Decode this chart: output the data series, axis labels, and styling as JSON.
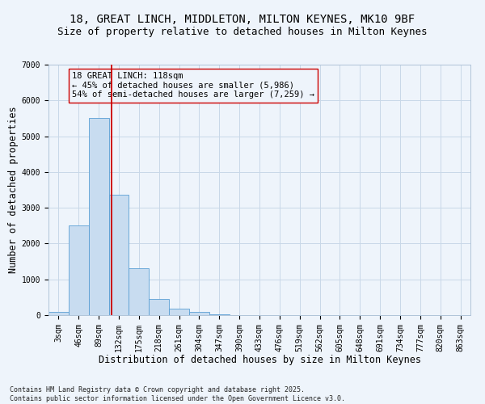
{
  "title_line1": "18, GREAT LINCH, MIDDLETON, MILTON KEYNES, MK10 9BF",
  "title_line2": "Size of property relative to detached houses in Milton Keynes",
  "xlabel": "Distribution of detached houses by size in Milton Keynes",
  "ylabel": "Number of detached properties",
  "categories": [
    "3sqm",
    "46sqm",
    "89sqm",
    "132sqm",
    "175sqm",
    "218sqm",
    "261sqm",
    "304sqm",
    "347sqm",
    "390sqm",
    "433sqm",
    "476sqm",
    "519sqm",
    "562sqm",
    "605sqm",
    "648sqm",
    "691sqm",
    "734sqm",
    "777sqm",
    "820sqm",
    "863sqm"
  ],
  "values": [
    100,
    2500,
    5500,
    3370,
    1310,
    460,
    190,
    100,
    30,
    0,
    0,
    0,
    0,
    0,
    0,
    0,
    0,
    0,
    0,
    0,
    0
  ],
  "bar_color": "#c8dcf0",
  "bar_edge_color": "#5a9fd4",
  "grid_color": "#c8d8e8",
  "bg_color": "#eef4fb",
  "vline_color": "#cc0000",
  "vline_pos": 2.62,
  "annotation_text": "18 GREAT LINCH: 118sqm\n← 45% of detached houses are smaller (5,986)\n54% of semi-detached houses are larger (7,259) →",
  "ylim": [
    0,
    7000
  ],
  "yticks": [
    0,
    1000,
    2000,
    3000,
    4000,
    5000,
    6000,
    7000
  ],
  "footnote": "Contains HM Land Registry data © Crown copyright and database right 2025.\nContains public sector information licensed under the Open Government Licence v3.0.",
  "title_fontsize": 10,
  "subtitle_fontsize": 9,
  "axis_label_fontsize": 8.5,
  "tick_fontsize": 7,
  "annot_fontsize": 7.5
}
